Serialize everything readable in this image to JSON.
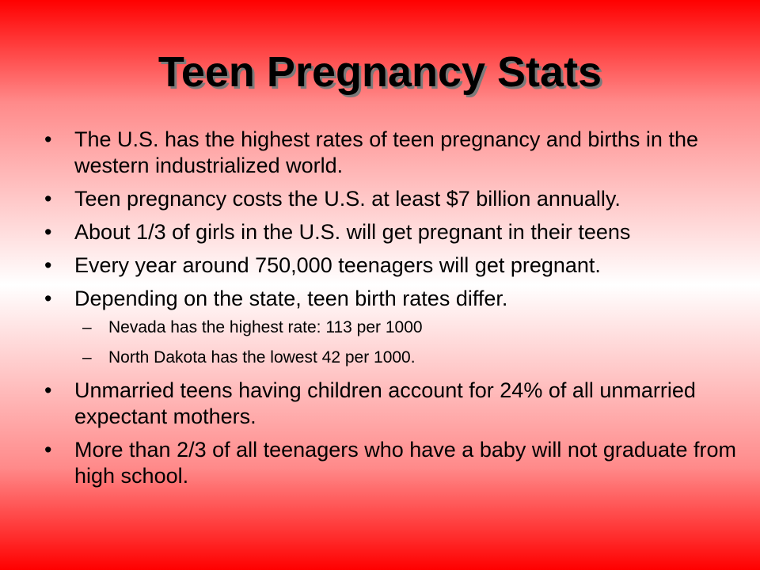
{
  "slide": {
    "title": "Teen Pregnancy Stats",
    "bullets": [
      "The U.S. has the highest rates of teen pregnancy and births in the western industrialized world.",
      "Teen pregnancy costs the U.S. at least $7 billion annually.",
      "About 1/3 of girls in the U.S. will get pregnant in their teens",
      "Every year around 750,000 teenagers will get pregnant.",
      "Depending on the state, teen birth rates differ."
    ],
    "sub_bullets": [
      "Nevada has the highest rate: 113 per 1000",
      "North Dakota has the lowest 42 per 1000."
    ],
    "bullets_after": [
      "Unmarried teens having children account for 24% of all unmarried expectant mothers.",
      "More than 2/3 of all teenagers who have a baby will not graduate from high school."
    ],
    "bullet_symbol": "•",
    "sub_bullet_symbol": "–"
  },
  "colors": {
    "background_edge": "#ff0000",
    "background_center": "#ffffff",
    "text": "#000000",
    "title_shadow": "#7a7a7a"
  }
}
